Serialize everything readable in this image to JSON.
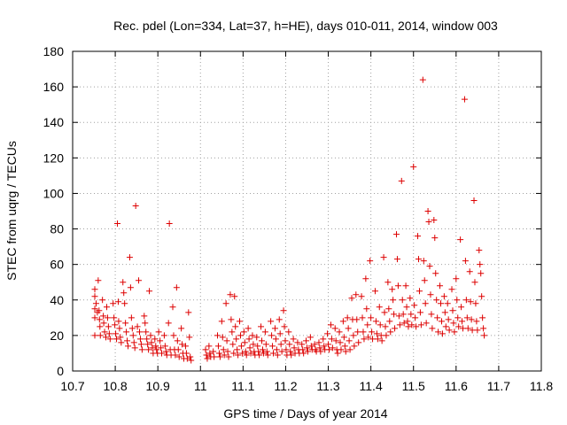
{
  "chart_data": {
    "type": "scatter",
    "title": "Rec. pdel (Lon=334, Lat=37, h=HE), days 010-011, 2014, window 003",
    "xlabel": "GPS time / Days of year 2014",
    "ylabel": "STEC from uqrg / TECUs",
    "xlim": [
      10.7,
      11.8
    ],
    "ylim": [
      0,
      180
    ],
    "xticks": [
      "10.7",
      "10.8",
      "10.9",
      "11",
      "11.1",
      "11.2",
      "11.3",
      "11.4",
      "11.5",
      "11.6",
      "11.7",
      "11.8"
    ],
    "yticks": [
      "0",
      "20",
      "40",
      "60",
      "80",
      "100",
      "120",
      "140",
      "160",
      "180"
    ],
    "grid": true,
    "marker": "+",
    "color": "#dd0000",
    "points": [
      [
        10.752,
        46
      ],
      [
        10.752,
        42
      ],
      [
        10.752,
        35
      ],
      [
        10.752,
        30
      ],
      [
        10.752,
        20
      ],
      [
        10.755,
        38
      ],
      [
        10.758,
        33
      ],
      [
        10.76,
        51
      ],
      [
        10.762,
        34
      ],
      [
        10.763,
        29
      ],
      [
        10.764,
        25
      ],
      [
        10.765,
        20
      ],
      [
        10.77,
        40
      ],
      [
        10.772,
        31
      ],
      [
        10.773,
        27
      ],
      [
        10.775,
        22
      ],
      [
        10.778,
        19
      ],
      [
        10.78,
        36
      ],
      [
        10.782,
        30
      ],
      [
        10.784,
        25
      ],
      [
        10.786,
        21
      ],
      [
        10.788,
        18
      ],
      [
        10.795,
        38
      ],
      [
        10.797,
        30
      ],
      [
        10.799,
        26
      ],
      [
        10.801,
        21
      ],
      [
        10.803,
        18
      ],
      [
        10.805,
        83
      ],
      [
        10.807,
        39
      ],
      [
        10.808,
        28
      ],
      [
        10.81,
        24
      ],
      [
        10.812,
        19
      ],
      [
        10.814,
        16
      ],
      [
        10.818,
        50
      ],
      [
        10.82,
        44
      ],
      [
        10.822,
        38
      ],
      [
        10.824,
        27
      ],
      [
        10.826,
        22
      ],
      [
        10.828,
        17
      ],
      [
        10.83,
        14
      ],
      [
        10.834,
        64
      ],
      [
        10.836,
        47
      ],
      [
        10.838,
        30
      ],
      [
        10.84,
        24
      ],
      [
        10.842,
        20
      ],
      [
        10.844,
        16
      ],
      [
        10.846,
        13
      ],
      [
        10.848,
        93
      ],
      [
        10.852,
        25
      ],
      [
        10.855,
        51
      ],
      [
        10.857,
        22
      ],
      [
        10.859,
        18
      ],
      [
        10.861,
        15
      ],
      [
        10.863,
        12
      ],
      [
        10.868,
        31
      ],
      [
        10.87,
        27
      ],
      [
        10.872,
        22
      ],
      [
        10.874,
        18
      ],
      [
        10.876,
        15
      ],
      [
        10.878,
        12
      ],
      [
        10.88,
        45
      ],
      [
        10.883,
        20
      ],
      [
        10.885,
        16
      ],
      [
        10.887,
        13
      ],
      [
        10.889,
        10
      ],
      [
        10.893,
        18
      ],
      [
        10.895,
        14
      ],
      [
        10.897,
        12
      ],
      [
        10.899,
        10
      ],
      [
        10.902,
        22
      ],
      [
        10.905,
        17
      ],
      [
        10.907,
        13
      ],
      [
        10.909,
        10
      ],
      [
        10.915,
        20
      ],
      [
        10.917,
        14
      ],
      [
        10.919,
        11
      ],
      [
        10.921,
        9
      ],
      [
        10.925,
        27
      ],
      [
        10.927,
        83
      ],
      [
        10.929,
        12
      ],
      [
        10.931,
        9
      ],
      [
        10.935,
        36
      ],
      [
        10.937,
        20
      ],
      [
        10.939,
        12
      ],
      [
        10.941,
        9
      ],
      [
        10.944,
        47
      ],
      [
        10.946,
        17
      ],
      [
        10.948,
        12
      ],
      [
        10.95,
        8
      ],
      [
        10.955,
        24
      ],
      [
        10.957,
        15
      ],
      [
        10.959,
        10
      ],
      [
        10.961,
        7
      ],
      [
        10.965,
        14
      ],
      [
        10.967,
        10
      ],
      [
        10.969,
        7
      ],
      [
        10.972,
        33
      ],
      [
        10.974,
        19
      ],
      [
        10.976,
        8
      ],
      [
        10.978,
        6
      ],
      [
        11.012,
        12
      ],
      [
        11.014,
        9
      ],
      [
        11.016,
        7
      ],
      [
        11.02,
        14
      ],
      [
        11.022,
        10
      ],
      [
        11.024,
        8
      ],
      [
        11.03,
        11
      ],
      [
        11.032,
        8
      ],
      [
        11.04,
        20
      ],
      [
        11.042,
        14
      ],
      [
        11.044,
        10
      ],
      [
        11.046,
        8
      ],
      [
        11.05,
        28
      ],
      [
        11.052,
        19
      ],
      [
        11.054,
        12
      ],
      [
        11.056,
        9
      ],
      [
        11.06,
        38
      ],
      [
        11.062,
        17
      ],
      [
        11.064,
        11
      ],
      [
        11.066,
        8
      ],
      [
        11.07,
        43
      ],
      [
        11.072,
        29
      ],
      [
        11.074,
        22
      ],
      [
        11.076,
        15
      ],
      [
        11.078,
        10
      ],
      [
        11.08,
        42
      ],
      [
        11.082,
        25
      ],
      [
        11.084,
        18
      ],
      [
        11.086,
        12
      ],
      [
        11.088,
        9
      ],
      [
        11.092,
        28
      ],
      [
        11.094,
        20
      ],
      [
        11.096,
        14
      ],
      [
        11.098,
        10
      ],
      [
        11.102,
        22
      ],
      [
        11.104,
        16
      ],
      [
        11.106,
        11
      ],
      [
        11.108,
        9
      ],
      [
        11.112,
        24
      ],
      [
        11.114,
        18
      ],
      [
        11.116,
        13
      ],
      [
        11.118,
        10
      ],
      [
        11.122,
        20
      ],
      [
        11.124,
        15
      ],
      [
        11.126,
        11
      ],
      [
        11.128,
        9
      ],
      [
        11.132,
        19
      ],
      [
        11.134,
        14
      ],
      [
        11.136,
        11
      ],
      [
        11.138,
        9
      ],
      [
        11.142,
        25
      ],
      [
        11.144,
        17
      ],
      [
        11.146,
        12
      ],
      [
        11.148,
        10
      ],
      [
        11.152,
        22
      ],
      [
        11.154,
        15
      ],
      [
        11.156,
        11
      ],
      [
        11.158,
        9
      ],
      [
        11.165,
        28
      ],
      [
        11.167,
        20
      ],
      [
        11.169,
        14
      ],
      [
        11.171,
        10
      ],
      [
        11.175,
        24
      ],
      [
        11.177,
        18
      ],
      [
        11.179,
        12
      ],
      [
        11.181,
        9
      ],
      [
        11.185,
        29
      ],
      [
        11.187,
        21
      ],
      [
        11.189,
        15
      ],
      [
        11.191,
        11
      ],
      [
        11.195,
        34
      ],
      [
        11.197,
        25
      ],
      [
        11.199,
        17
      ],
      [
        11.201,
        12
      ],
      [
        11.203,
        9
      ],
      [
        11.207,
        22
      ],
      [
        11.209,
        15
      ],
      [
        11.211,
        11
      ],
      [
        11.213,
        9
      ],
      [
        11.218,
        18
      ],
      [
        11.22,
        13
      ],
      [
        11.222,
        10
      ],
      [
        11.228,
        16
      ],
      [
        11.23,
        12
      ],
      [
        11.232,
        10
      ],
      [
        11.238,
        15
      ],
      [
        11.24,
        12
      ],
      [
        11.242,
        10
      ],
      [
        11.248,
        17
      ],
      [
        11.25,
        13
      ],
      [
        11.252,
        11
      ],
      [
        11.258,
        19
      ],
      [
        11.26,
        14
      ],
      [
        11.262,
        12
      ],
      [
        11.268,
        15
      ],
      [
        11.27,
        12
      ],
      [
        11.272,
        11
      ],
      [
        11.278,
        16
      ],
      [
        11.28,
        13
      ],
      [
        11.282,
        11
      ],
      [
        11.288,
        18
      ],
      [
        11.29,
        14
      ],
      [
        11.292,
        12
      ],
      [
        11.298,
        21
      ],
      [
        11.3,
        15
      ],
      [
        11.302,
        12
      ],
      [
        11.306,
        26
      ],
      [
        11.308,
        18
      ],
      [
        11.31,
        13
      ],
      [
        11.316,
        24
      ],
      [
        11.318,
        17
      ],
      [
        11.32,
        12
      ],
      [
        11.322,
        10
      ],
      [
        11.326,
        22
      ],
      [
        11.328,
        16
      ],
      [
        11.33,
        12
      ],
      [
        11.335,
        28
      ],
      [
        11.337,
        19
      ],
      [
        11.339,
        14
      ],
      [
        11.341,
        11
      ],
      [
        11.345,
        30
      ],
      [
        11.347,
        24
      ],
      [
        11.349,
        17
      ],
      [
        11.351,
        12
      ],
      [
        11.355,
        41
      ],
      [
        11.357,
        29
      ],
      [
        11.359,
        20
      ],
      [
        11.361,
        14
      ],
      [
        11.365,
        43
      ],
      [
        11.367,
        29
      ],
      [
        11.369,
        22
      ],
      [
        11.371,
        16
      ],
      [
        11.378,
        42
      ],
      [
        11.38,
        30
      ],
      [
        11.382,
        22
      ],
      [
        11.384,
        18
      ],
      [
        11.388,
        52
      ],
      [
        11.39,
        35
      ],
      [
        11.392,
        26
      ],
      [
        11.394,
        19
      ],
      [
        11.398,
        62
      ],
      [
        11.4,
        30
      ],
      [
        11.402,
        22
      ],
      [
        11.404,
        18
      ],
      [
        11.41,
        45
      ],
      [
        11.412,
        28
      ],
      [
        11.414,
        21
      ],
      [
        11.416,
        18
      ],
      [
        11.42,
        36
      ],
      [
        11.422,
        26
      ],
      [
        11.424,
        20
      ],
      [
        11.426,
        17
      ],
      [
        11.43,
        64
      ],
      [
        11.432,
        33
      ],
      [
        11.434,
        25
      ],
      [
        11.436,
        20
      ],
      [
        11.44,
        50
      ],
      [
        11.442,
        35
      ],
      [
        11.444,
        28
      ],
      [
        11.446,
        22
      ],
      [
        11.45,
        46
      ],
      [
        11.452,
        40
      ],
      [
        11.454,
        32
      ],
      [
        11.456,
        24
      ],
      [
        11.46,
        77
      ],
      [
        11.462,
        63
      ],
      [
        11.464,
        48
      ],
      [
        11.466,
        31
      ],
      [
        11.468,
        26
      ],
      [
        11.472,
        107
      ],
      [
        11.474,
        40
      ],
      [
        11.476,
        32
      ],
      [
        11.478,
        27
      ],
      [
        11.482,
        48
      ],
      [
        11.484,
        36
      ],
      [
        11.486,
        28
      ],
      [
        11.488,
        25
      ],
      [
        11.492,
        41
      ],
      [
        11.494,
        32
      ],
      [
        11.496,
        26
      ],
      [
        11.5,
        115
      ],
      [
        11.502,
        37
      ],
      [
        11.504,
        30
      ],
      [
        11.506,
        25
      ],
      [
        11.51,
        76
      ],
      [
        11.512,
        63
      ],
      [
        11.514,
        45
      ],
      [
        11.516,
        33
      ],
      [
        11.518,
        26
      ],
      [
        11.522,
        164
      ],
      [
        11.524,
        62
      ],
      [
        11.526,
        51
      ],
      [
        11.528,
        38
      ],
      [
        11.53,
        27
      ],
      [
        11.534,
        90
      ],
      [
        11.536,
        84
      ],
      [
        11.538,
        59
      ],
      [
        11.54,
        43
      ],
      [
        11.542,
        32
      ],
      [
        11.544,
        24
      ],
      [
        11.548,
        85
      ],
      [
        11.55,
        75
      ],
      [
        11.552,
        55
      ],
      [
        11.554,
        40
      ],
      [
        11.556,
        30
      ],
      [
        11.558,
        22
      ],
      [
        11.562,
        48
      ],
      [
        11.564,
        38
      ],
      [
        11.566,
        28
      ],
      [
        11.568,
        21
      ],
      [
        11.572,
        42
      ],
      [
        11.574,
        33
      ],
      [
        11.576,
        25
      ],
      [
        11.58,
        38
      ],
      [
        11.582,
        29
      ],
      [
        11.584,
        23
      ],
      [
        11.59,
        46
      ],
      [
        11.592,
        34
      ],
      [
        11.594,
        27
      ],
      [
        11.596,
        22
      ],
      [
        11.6,
        52
      ],
      [
        11.602,
        40
      ],
      [
        11.604,
        30
      ],
      [
        11.606,
        25
      ],
      [
        11.61,
        74
      ],
      [
        11.612,
        36
      ],
      [
        11.614,
        28
      ],
      [
        11.616,
        24
      ],
      [
        11.62,
        153
      ],
      [
        11.622,
        62
      ],
      [
        11.624,
        40
      ],
      [
        11.626,
        30
      ],
      [
        11.628,
        24
      ],
      [
        11.632,
        56
      ],
      [
        11.634,
        39
      ],
      [
        11.636,
        29
      ],
      [
        11.638,
        23
      ],
      [
        11.642,
        96
      ],
      [
        11.644,
        50
      ],
      [
        11.646,
        38
      ],
      [
        11.648,
        28
      ],
      [
        11.65,
        23
      ],
      [
        11.654,
        68
      ],
      [
        11.656,
        60
      ],
      [
        11.658,
        55
      ],
      [
        11.66,
        42
      ],
      [
        11.662,
        30
      ],
      [
        11.664,
        24
      ],
      [
        11.666,
        20
      ]
    ]
  }
}
